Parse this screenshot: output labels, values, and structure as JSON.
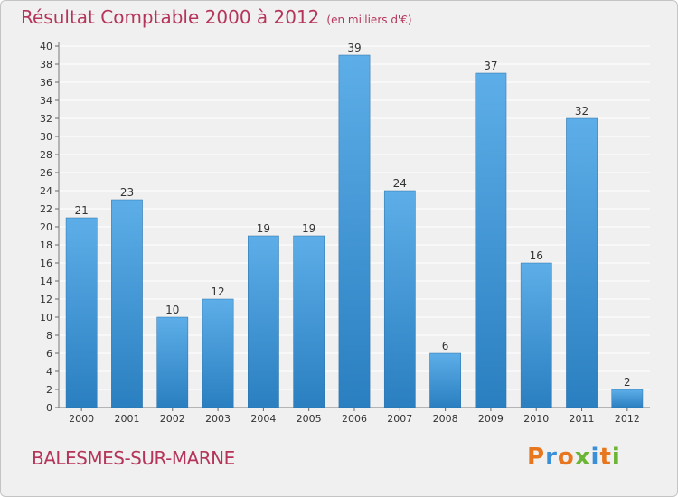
{
  "header": {
    "title": "Résultat Comptable 2000 à 2012",
    "subtitle": "(en milliers d'€)"
  },
  "footer": {
    "town": "BALESMES-SUR-MARNE",
    "logo": "Proxiti",
    "logo_colors": [
      "#e8761e",
      "#3b8fd6",
      "#e8761e",
      "#6ab534",
      "#3b8fd6",
      "#e8761e",
      "#6ab534"
    ]
  },
  "colors": {
    "title": "#b5355a",
    "bar_light": "#5daee8",
    "bar_dark": "#2a7fc0",
    "grid": "#ffffff",
    "background": "#f0f0f0"
  },
  "chart_data": {
    "type": "bar",
    "title": "Résultat Comptable 2000 à 2012",
    "subtitle": "(en milliers d'€)",
    "categories": [
      "2000",
      "2001",
      "2002",
      "2003",
      "2004",
      "2005",
      "2006",
      "2007",
      "2008",
      "2009",
      "2010",
      "2011",
      "2012"
    ],
    "values": [
      21,
      23,
      10,
      12,
      19,
      19,
      39,
      24,
      6,
      37,
      16,
      32,
      2
    ],
    "ylim": [
      0,
      40
    ],
    "yticks": [
      0,
      2,
      4,
      6,
      8,
      10,
      12,
      14,
      16,
      18,
      20,
      22,
      24,
      26,
      28,
      30,
      32,
      34,
      36,
      38,
      40
    ],
    "grid": true,
    "legend": "none"
  }
}
